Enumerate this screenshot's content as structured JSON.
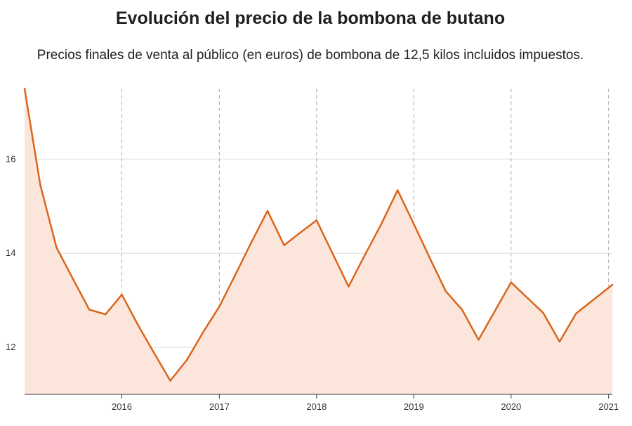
{
  "page": {
    "title": "Evolución del precio de la bombona de butano",
    "subtitle": "Precios finales de venta al público (en euros) de bombona de 12,5 kilos incluidos impuestos."
  },
  "colors": {
    "line": "#d9661c",
    "area": "#fce6dc",
    "grid": "#dddddd",
    "year_marker": "#aaaaaa"
  },
  "chart_data": {
    "type": "area",
    "title": "Evolución del precio de la bombona de butano",
    "subtitle": "Precios finales de venta al público (en euros) de bombona de 12,5 kilos incluidos impuestos.",
    "xlabel": "",
    "ylabel": "",
    "x_type": "date",
    "xlim": [
      "2015-01-01",
      "2021-01-15"
    ],
    "ylim": [
      11.0,
      17.5
    ],
    "x_ticks": [
      "2016",
      "2017",
      "2018",
      "2019",
      "2020",
      "2021"
    ],
    "y_ticks": [
      12,
      14,
      16
    ],
    "y_grid": true,
    "x_year_markers_dashed": true,
    "legend": "none",
    "x": [
      "2015-01-01",
      "2015-03-01",
      "2015-05-01",
      "2015-07-01",
      "2015-09-01",
      "2015-11-01",
      "2016-01-01",
      "2016-03-01",
      "2016-05-01",
      "2016-07-01",
      "2016-09-01",
      "2016-11-01",
      "2017-01-01",
      "2017-03-01",
      "2017-05-01",
      "2017-07-01",
      "2017-09-01",
      "2017-11-01",
      "2018-01-01",
      "2018-05-01",
      "2018-07-01",
      "2018-09-01",
      "2018-11-01",
      "2019-01-01",
      "2019-03-01",
      "2019-05-01",
      "2019-07-01",
      "2019-09-01",
      "2020-01-01",
      "2020-05-01",
      "2020-07-01",
      "2020-09-01",
      "2021-01-15"
    ],
    "series": [
      {
        "values": [
          17.5,
          15.45,
          14.12,
          13.46,
          12.8,
          12.7,
          13.12,
          12.48,
          11.88,
          11.29,
          11.73,
          12.32,
          12.87,
          13.53,
          14.23,
          14.9,
          14.17,
          14.44,
          14.7,
          13.29,
          13.96,
          14.62,
          15.34,
          14.62,
          13.91,
          13.19,
          12.8,
          12.16,
          13.38,
          12.73,
          12.12,
          12.72,
          13.33
        ]
      }
    ]
  }
}
